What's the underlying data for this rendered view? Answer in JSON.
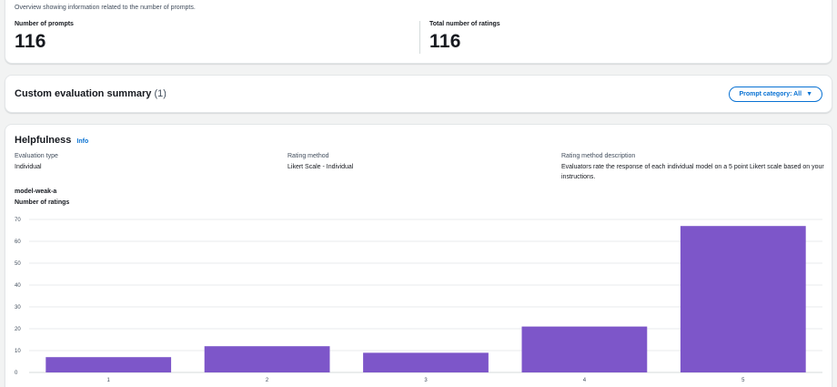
{
  "overview": {
    "description": "Overview showing information related to the number of prompts.",
    "prompts_label": "Number of prompts",
    "prompts_value": "116",
    "ratings_label": "Total number of ratings",
    "ratings_value": "116"
  },
  "summary": {
    "title": "Custom evaluation summary",
    "count": "(1)",
    "filter_label": "Prompt category: All",
    "filter_icon": "caret-down-icon"
  },
  "metric": {
    "title": "Helpfulness",
    "info_link": "Info",
    "evaluation_type_label": "Evaluation type",
    "evaluation_type_value": "Individual",
    "rating_method_label": "Rating method",
    "rating_method_value": "Likert Scale - Individual",
    "rating_desc_label": "Rating method description",
    "rating_desc_value": "Evaluators rate the response of each individual model on a 5 point Likert scale based on your instructions.",
    "model_name": "model-weak-a",
    "chart_label": "Number of ratings"
  },
  "colors": {
    "bar": "#7d56c9",
    "accent": "#0972d3"
  },
  "chart_data": {
    "type": "bar",
    "categories": [
      "1",
      "2",
      "3",
      "4",
      "5"
    ],
    "values": [
      7,
      12,
      9,
      21,
      67
    ],
    "ylabel": "Number of ratings",
    "ylim": [
      0,
      70
    ],
    "yticks": [
      0,
      10,
      20,
      30,
      40,
      50,
      60,
      70
    ],
    "grid": true
  }
}
